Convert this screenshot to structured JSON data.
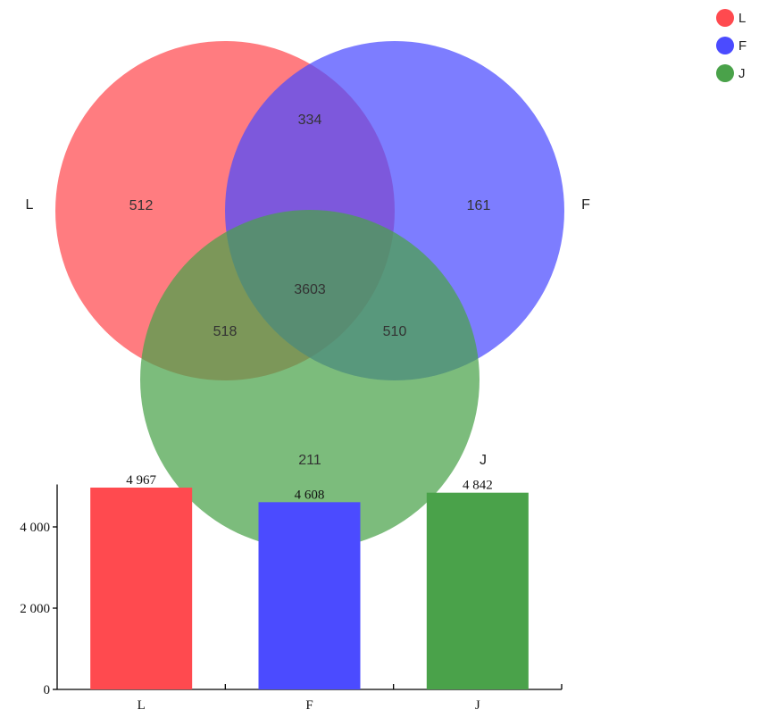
{
  "colors": {
    "L": "#ff4a4f",
    "F": "#4b4bff",
    "J": "#4aa24a"
  },
  "legend": [
    {
      "key": "L",
      "label": "L",
      "color": "#ff4a4f"
    },
    {
      "key": "F",
      "label": "F",
      "color": "#4b4bff"
    },
    {
      "key": "J",
      "label": "J",
      "color": "#4aa24a"
    }
  ],
  "chart_data": [
    {
      "type": "venn",
      "sets": [
        "L",
        "F",
        "J"
      ],
      "set_labels": {
        "L": "L",
        "F": "F",
        "J": "J"
      },
      "regions": {
        "L_only": "512",
        "F_only": "161",
        "J_only": "211",
        "L_F": "334",
        "L_J": "518",
        "F_J": "510",
        "L_F_J": "3603"
      }
    },
    {
      "type": "bar",
      "categories": [
        "L",
        "F",
        "J"
      ],
      "values": [
        4967,
        4608,
        4842
      ],
      "value_labels": [
        "4 967",
        "4 608",
        "4 842"
      ],
      "ytick_values": [
        0,
        2000,
        4000
      ],
      "ytick_labels": [
        "0",
        "2 000",
        "4 000"
      ],
      "ylim": [
        0,
        5000
      ],
      "grid": false
    }
  ]
}
